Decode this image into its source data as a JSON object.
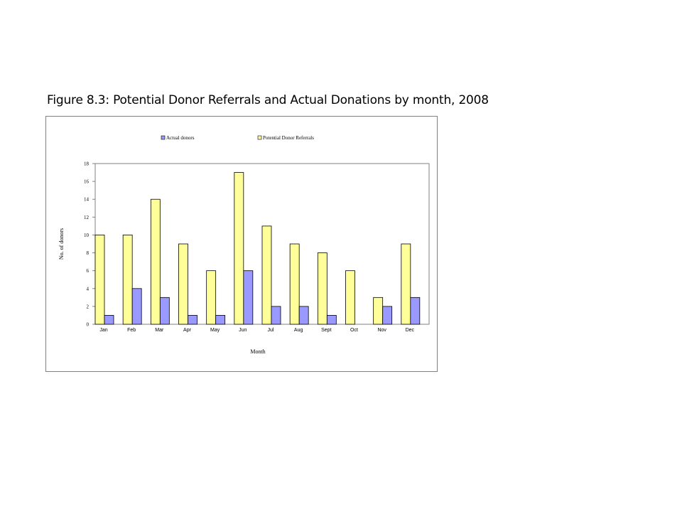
{
  "slide": {
    "title": "Figure 8.3: Potential Donor Referrals and Actual Donations by month, 2008"
  },
  "chart_data": {
    "type": "bar",
    "categories": [
      "Jan",
      "Feb",
      "Mar",
      "Apr",
      "May",
      "Jun",
      "Jul",
      "Aug",
      "Sept",
      "Oct",
      "Nov",
      "Dec"
    ],
    "series": [
      {
        "name": "Potential Donor Referrals",
        "values": [
          10,
          10,
          14,
          9,
          6,
          17,
          11,
          9,
          8,
          6,
          3,
          9
        ],
        "color": "#ffff99"
      },
      {
        "name": "Actual donors",
        "values": [
          1,
          4,
          3,
          1,
          1,
          6,
          2,
          2,
          1,
          0,
          2,
          3
        ],
        "color": "#9999ff"
      }
    ],
    "legend_order": [
      "Actual donors",
      "Potential Donor Referrals"
    ],
    "xlabel": "Month",
    "ylabel": "No. of donors",
    "ylim": [
      0,
      18
    ],
    "yticks": [
      0,
      2,
      4,
      6,
      8,
      10,
      12,
      14,
      16,
      18
    ],
    "grid": false,
    "legend_position": "top"
  }
}
